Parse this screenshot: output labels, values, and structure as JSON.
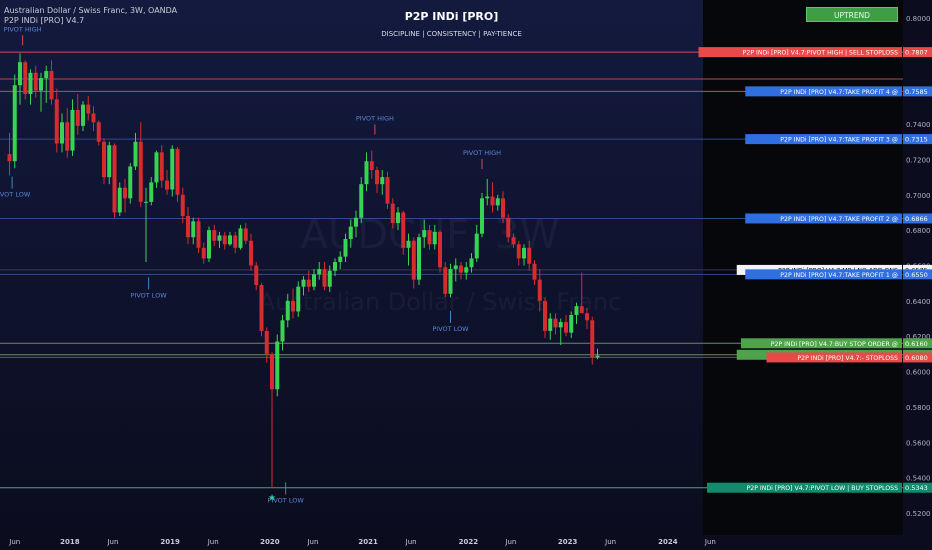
{
  "header": {
    "symbol_line": "Australian Dollar / Swiss Franc, 3W, OANDA",
    "indicator_line": "P2P INDi [PRO] V4.7",
    "title": "P2P INDi [PRO]",
    "subtitle": "DISCIPLINE  |  CONSISTENCY  |  PAY-TIENCE",
    "trend_badge": "UPTREND"
  },
  "watermark": {
    "ticker": "AUDCHF, 3W",
    "name": "Australian Dollar / Swiss Franc"
  },
  "colors": {
    "background": "#0b0c1e",
    "future_zone": "#06070b",
    "candle_up": "#39d353",
    "candle_down": "#d62b2f",
    "label_blue": "#2f6fe0",
    "label_red": "#e84a4a",
    "label_green": "#4fa34a",
    "label_teal": "#148a6c",
    "label_white": "#f3f3f3"
  },
  "y_axis": {
    "ticks": [
      "0.8000",
      "0.7800",
      "0.7600",
      "0.7400",
      "0.7200",
      "0.7000",
      "0.6800",
      "0.6600",
      "0.6400",
      "0.6200",
      "0.6000",
      "0.5800",
      "0.5600",
      "0.5400",
      "0.5200"
    ],
    "tick_values": [
      0.8,
      0.78,
      0.76,
      0.74,
      0.72,
      0.7,
      0.68,
      0.66,
      0.64,
      0.62,
      0.6,
      0.58,
      0.56,
      0.54,
      0.52
    ]
  },
  "x_axis": {
    "labels": [
      {
        "text": "Jun",
        "bar": 1
      },
      {
        "text": "2018",
        "bar": 11.5
      },
      {
        "text": "Jun",
        "bar": 19.7
      },
      {
        "text": "2019",
        "bar": 30.6
      },
      {
        "text": "Jun",
        "bar": 38.8
      },
      {
        "text": "2020",
        "bar": 49.6
      },
      {
        "text": "Jun",
        "bar": 57.8
      },
      {
        "text": "2021",
        "bar": 68.3
      },
      {
        "text": "Jun",
        "bar": 76.5
      },
      {
        "text": "2022",
        "bar": 87.4
      },
      {
        "text": "Jun",
        "bar": 95.5
      },
      {
        "text": "2023",
        "bar": 106.3
      },
      {
        "text": "Jun",
        "bar": 114.5
      },
      {
        "text": "2024",
        "bar": 125.4
      },
      {
        "text": "Jun",
        "bar": 133.5
      }
    ]
  },
  "levels": [
    {
      "text": "P2P INDi [PRO] V4.7:PIVOT HIGH | SELL STOPLOSS",
      "price": 0.7807,
      "price_text": "0.7807",
      "color": "#e84a4a",
      "text_color": "#ffffff",
      "line": "#d64c4c"
    },
    {
      "text": "",
      "price": 0.7655,
      "price_text": "",
      "color": "",
      "text_color": "",
      "line": "#b24c4c"
    },
    {
      "text": "P2P INDi [PRO] V4.7:TAKE PROFIT 4 @",
      "price": 0.7585,
      "price_text": "0.7585",
      "color": "#2f6fe0",
      "text_color": "#ffffff",
      "line": "#c44a5a"
    },
    {
      "text": "P2P INDi [PRO] V4.7:TAKE PROFIT 3 @",
      "price": 0.7315,
      "price_text": "0.7315",
      "color": "#2f6fe0",
      "text_color": "#ffffff",
      "line": "#2e4d8a"
    },
    {
      "text": "P2P INDi [PRO] V4.7:TAKE PROFIT 2 @",
      "price": 0.6866,
      "price_text": "0.6866",
      "color": "#2f6fe0",
      "text_color": "#ffffff",
      "line": "#2e4d8a"
    },
    {
      "text": "P2P INDi [PRO] V4.7:MP  |  NO ADD ONS",
      "price": 0.6575,
      "price_text": "0.6575",
      "color": "#f3f3f3",
      "text_color": "#111111",
      "line": "#333a55"
    },
    {
      "text": "P2P INDi [PRO] V4.7:TAKE PROFIT 1 @",
      "price": 0.655,
      "price_text": "0.6550",
      "color": "#2f6fe0",
      "text_color": "#ffffff",
      "line": "#2e4d8a"
    },
    {
      "text": "P2P INDi [PRO] V4.7:BUY STOP ORDER @",
      "price": 0.616,
      "price_text": "0.6160",
      "color": "#4fa34a",
      "text_color": "#ffffff",
      "line": "#6a8a6a"
    },
    {
      "text": "P2P INDi [PRO] V4.7:BUY LIMIT ORDER @",
      "price": 0.6095,
      "price_text": "0.6095",
      "color": "#4fa34a",
      "text_color": "#ffffff",
      "line": "#6a8a6a"
    },
    {
      "text": "P2P INDi [PRO] V4.7:- STOPLOSS",
      "price": 0.608,
      "price_text": "0.6080",
      "color": "#e84a4a",
      "text_color": "#ffffff",
      "line": "#8a4a4a"
    },
    {
      "text": "P2P INDi [PRO] V4.7:PIVOT LOW | BUY STOPLOSS",
      "price": 0.5343,
      "price_text": "0.5343",
      "color": "#148a6c",
      "text_color": "#ffffff",
      "line": "#21b48e"
    }
  ],
  "pivot_labels": [
    {
      "text": "PIVOT HIGH",
      "bar": 2.5,
      "price": 0.7925
    },
    {
      "text": "PIVOT LOW",
      "bar": 0.5,
      "price": 0.699
    },
    {
      "text": "PIVOT LOW",
      "bar": 26.5,
      "price": 0.642
    },
    {
      "text": "PIVOT HIGH",
      "bar": 69.6,
      "price": 0.742
    },
    {
      "text": "PIVOT HIGH",
      "bar": 90.0,
      "price": 0.7225
    },
    {
      "text": "PIVOT LOW",
      "bar": 84.0,
      "price": 0.623
    },
    {
      "text": "PIVOT LOW",
      "bar": 52.6,
      "price": 0.526
    }
  ],
  "chart_data": {
    "type": "candlestick",
    "title": "P2P INDi [PRO]",
    "ylim": [
      0.51,
      0.81
    ],
    "last_price": 0.608,
    "candles": [
      {
        "o": 0.723,
        "h": 0.735,
        "l": 0.711,
        "c": 0.719
      },
      {
        "o": 0.719,
        "h": 0.768,
        "l": 0.715,
        "c": 0.762
      },
      {
        "o": 0.762,
        "h": 0.78,
        "l": 0.751,
        "c": 0.775
      },
      {
        "o": 0.775,
        "h": 0.776,
        "l": 0.754,
        "c": 0.757
      },
      {
        "o": 0.757,
        "h": 0.771,
        "l": 0.751,
        "c": 0.769
      },
      {
        "o": 0.769,
        "h": 0.773,
        "l": 0.755,
        "c": 0.759
      },
      {
        "o": 0.759,
        "h": 0.769,
        "l": 0.747,
        "c": 0.766
      },
      {
        "o": 0.766,
        "h": 0.773,
        "l": 0.752,
        "c": 0.77
      },
      {
        "o": 0.77,
        "h": 0.776,
        "l": 0.751,
        "c": 0.754
      },
      {
        "o": 0.754,
        "h": 0.76,
        "l": 0.724,
        "c": 0.729
      },
      {
        "o": 0.729,
        "h": 0.746,
        "l": 0.724,
        "c": 0.741
      },
      {
        "o": 0.741,
        "h": 0.749,
        "l": 0.721,
        "c": 0.725
      },
      {
        "o": 0.725,
        "h": 0.754,
        "l": 0.722,
        "c": 0.748
      },
      {
        "o": 0.748,
        "h": 0.757,
        "l": 0.734,
        "c": 0.739
      },
      {
        "o": 0.739,
        "h": 0.753,
        "l": 0.736,
        "c": 0.751
      },
      {
        "o": 0.751,
        "h": 0.756,
        "l": 0.742,
        "c": 0.746
      },
      {
        "o": 0.746,
        "h": 0.75,
        "l": 0.736,
        "c": 0.741
      },
      {
        "o": 0.741,
        "h": 0.742,
        "l": 0.728,
        "c": 0.73
      },
      {
        "o": 0.73,
        "h": 0.732,
        "l": 0.706,
        "c": 0.71
      },
      {
        "o": 0.71,
        "h": 0.73,
        "l": 0.706,
        "c": 0.728
      },
      {
        "o": 0.728,
        "h": 0.729,
        "l": 0.687,
        "c": 0.69
      },
      {
        "o": 0.69,
        "h": 0.707,
        "l": 0.688,
        "c": 0.704
      },
      {
        "o": 0.704,
        "h": 0.709,
        "l": 0.69,
        "c": 0.698
      },
      {
        "o": 0.698,
        "h": 0.718,
        "l": 0.695,
        "c": 0.716
      },
      {
        "o": 0.716,
        "h": 0.735,
        "l": 0.714,
        "c": 0.73
      },
      {
        "o": 0.73,
        "h": 0.741,
        "l": 0.693,
        "c": 0.696
      },
      {
        "o": 0.696,
        "h": 0.704,
        "l": 0.662,
        "c": 0.696
      },
      {
        "o": 0.696,
        "h": 0.71,
        "l": 0.694,
        "c": 0.707
      },
      {
        "o": 0.707,
        "h": 0.725,
        "l": 0.704,
        "c": 0.724
      },
      {
        "o": 0.724,
        "h": 0.728,
        "l": 0.704,
        "c": 0.708
      },
      {
        "o": 0.708,
        "h": 0.714,
        "l": 0.7,
        "c": 0.703
      },
      {
        "o": 0.703,
        "h": 0.728,
        "l": 0.699,
        "c": 0.726
      },
      {
        "o": 0.726,
        "h": 0.727,
        "l": 0.696,
        "c": 0.7
      },
      {
        "o": 0.7,
        "h": 0.704,
        "l": 0.684,
        "c": 0.688
      },
      {
        "o": 0.688,
        "h": 0.693,
        "l": 0.672,
        "c": 0.676
      },
      {
        "o": 0.676,
        "h": 0.687,
        "l": 0.672,
        "c": 0.685
      },
      {
        "o": 0.685,
        "h": 0.687,
        "l": 0.667,
        "c": 0.67
      },
      {
        "o": 0.67,
        "h": 0.673,
        "l": 0.661,
        "c": 0.664
      },
      {
        "o": 0.664,
        "h": 0.682,
        "l": 0.662,
        "c": 0.68
      },
      {
        "o": 0.68,
        "h": 0.683,
        "l": 0.671,
        "c": 0.674
      },
      {
        "o": 0.674,
        "h": 0.679,
        "l": 0.67,
        "c": 0.677
      },
      {
        "o": 0.677,
        "h": 0.679,
        "l": 0.669,
        "c": 0.672
      },
      {
        "o": 0.672,
        "h": 0.679,
        "l": 0.671,
        "c": 0.677
      },
      {
        "o": 0.677,
        "h": 0.679,
        "l": 0.667,
        "c": 0.67
      },
      {
        "o": 0.67,
        "h": 0.683,
        "l": 0.669,
        "c": 0.681
      },
      {
        "o": 0.681,
        "h": 0.684,
        "l": 0.672,
        "c": 0.674
      },
      {
        "o": 0.674,
        "h": 0.678,
        "l": 0.657,
        "c": 0.66
      },
      {
        "o": 0.66,
        "h": 0.662,
        "l": 0.646,
        "c": 0.649
      },
      {
        "o": 0.649,
        "h": 0.65,
        "l": 0.62,
        "c": 0.623
      },
      {
        "o": 0.623,
        "h": 0.625,
        "l": 0.605,
        "c": 0.61
      },
      {
        "o": 0.61,
        "h": 0.611,
        "l": 0.534,
        "c": 0.59
      },
      {
        "o": 0.59,
        "h": 0.621,
        "l": 0.586,
        "c": 0.617
      },
      {
        "o": 0.617,
        "h": 0.632,
        "l": 0.612,
        "c": 0.629
      },
      {
        "o": 0.629,
        "h": 0.644,
        "l": 0.625,
        "c": 0.64
      },
      {
        "o": 0.64,
        "h": 0.647,
        "l": 0.63,
        "c": 0.634
      },
      {
        "o": 0.634,
        "h": 0.651,
        "l": 0.631,
        "c": 0.648
      },
      {
        "o": 0.648,
        "h": 0.654,
        "l": 0.643,
        "c": 0.652
      },
      {
        "o": 0.652,
        "h": 0.657,
        "l": 0.645,
        "c": 0.648
      },
      {
        "o": 0.648,
        "h": 0.658,
        "l": 0.646,
        "c": 0.655
      },
      {
        "o": 0.655,
        "h": 0.662,
        "l": 0.652,
        "c": 0.658
      },
      {
        "o": 0.658,
        "h": 0.662,
        "l": 0.646,
        "c": 0.648
      },
      {
        "o": 0.648,
        "h": 0.66,
        "l": 0.645,
        "c": 0.657
      },
      {
        "o": 0.657,
        "h": 0.664,
        "l": 0.654,
        "c": 0.662
      },
      {
        "o": 0.662,
        "h": 0.668,
        "l": 0.658,
        "c": 0.665
      },
      {
        "o": 0.665,
        "h": 0.678,
        "l": 0.662,
        "c": 0.675
      },
      {
        "o": 0.675,
        "h": 0.686,
        "l": 0.67,
        "c": 0.682
      },
      {
        "o": 0.682,
        "h": 0.691,
        "l": 0.676,
        "c": 0.687
      },
      {
        "o": 0.687,
        "h": 0.71,
        "l": 0.684,
        "c": 0.706
      },
      {
        "o": 0.706,
        "h": 0.724,
        "l": 0.702,
        "c": 0.719
      },
      {
        "o": 0.719,
        "h": 0.725,
        "l": 0.709,
        "c": 0.714
      },
      {
        "o": 0.714,
        "h": 0.716,
        "l": 0.701,
        "c": 0.706
      },
      {
        "o": 0.706,
        "h": 0.714,
        "l": 0.7,
        "c": 0.71
      },
      {
        "o": 0.71,
        "h": 0.713,
        "l": 0.692,
        "c": 0.695
      },
      {
        "o": 0.695,
        "h": 0.698,
        "l": 0.681,
        "c": 0.684
      },
      {
        "o": 0.684,
        "h": 0.693,
        "l": 0.68,
        "c": 0.69
      },
      {
        "o": 0.69,
        "h": 0.691,
        "l": 0.666,
        "c": 0.67
      },
      {
        "o": 0.67,
        "h": 0.678,
        "l": 0.66,
        "c": 0.674
      },
      {
        "o": 0.674,
        "h": 0.676,
        "l": 0.647,
        "c": 0.652
      },
      {
        "o": 0.652,
        "h": 0.678,
        "l": 0.649,
        "c": 0.676
      },
      {
        "o": 0.676,
        "h": 0.686,
        "l": 0.67,
        "c": 0.68
      },
      {
        "o": 0.68,
        "h": 0.683,
        "l": 0.669,
        "c": 0.672
      },
      {
        "o": 0.672,
        "h": 0.683,
        "l": 0.669,
        "c": 0.679
      },
      {
        "o": 0.679,
        "h": 0.68,
        "l": 0.656,
        "c": 0.659
      },
      {
        "o": 0.659,
        "h": 0.662,
        "l": 0.642,
        "c": 0.644
      },
      {
        "o": 0.644,
        "h": 0.661,
        "l": 0.642,
        "c": 0.658
      },
      {
        "o": 0.658,
        "h": 0.664,
        "l": 0.651,
        "c": 0.66
      },
      {
        "o": 0.66,
        "h": 0.662,
        "l": 0.652,
        "c": 0.656
      },
      {
        "o": 0.656,
        "h": 0.662,
        "l": 0.652,
        "c": 0.659
      },
      {
        "o": 0.659,
        "h": 0.667,
        "l": 0.656,
        "c": 0.664
      },
      {
        "o": 0.664,
        "h": 0.683,
        "l": 0.662,
        "c": 0.678
      },
      {
        "o": 0.678,
        "h": 0.701,
        "l": 0.676,
        "c": 0.698
      },
      {
        "o": 0.698,
        "h": 0.709,
        "l": 0.694,
        "c": 0.699
      },
      {
        "o": 0.699,
        "h": 0.707,
        "l": 0.69,
        "c": 0.694
      },
      {
        "o": 0.694,
        "h": 0.7,
        "l": 0.691,
        "c": 0.698
      },
      {
        "o": 0.698,
        "h": 0.702,
        "l": 0.684,
        "c": 0.687
      },
      {
        "o": 0.687,
        "h": 0.689,
        "l": 0.673,
        "c": 0.676
      },
      {
        "o": 0.676,
        "h": 0.678,
        "l": 0.67,
        "c": 0.672
      },
      {
        "o": 0.672,
        "h": 0.674,
        "l": 0.66,
        "c": 0.664
      },
      {
        "o": 0.664,
        "h": 0.672,
        "l": 0.66,
        "c": 0.67
      },
      {
        "o": 0.67,
        "h": 0.674,
        "l": 0.657,
        "c": 0.661
      },
      {
        "o": 0.661,
        "h": 0.663,
        "l": 0.649,
        "c": 0.652
      },
      {
        "o": 0.652,
        "h": 0.658,
        "l": 0.634,
        "c": 0.64
      },
      {
        "o": 0.64,
        "h": 0.642,
        "l": 0.619,
        "c": 0.623
      },
      {
        "o": 0.623,
        "h": 0.633,
        "l": 0.618,
        "c": 0.63
      },
      {
        "o": 0.63,
        "h": 0.633,
        "l": 0.621,
        "c": 0.625
      },
      {
        "o": 0.625,
        "h": 0.63,
        "l": 0.615,
        "c": 0.628
      },
      {
        "o": 0.628,
        "h": 0.632,
        "l": 0.62,
        "c": 0.622
      },
      {
        "o": 0.622,
        "h": 0.634,
        "l": 0.619,
        "c": 0.632
      },
      {
        "o": 0.632,
        "h": 0.639,
        "l": 0.627,
        "c": 0.637
      },
      {
        "o": 0.637,
        "h": 0.656,
        "l": 0.634,
        "c": 0.633
      },
      {
        "o": 0.633,
        "h": 0.636,
        "l": 0.624,
        "c": 0.629
      },
      {
        "o": 0.629,
        "h": 0.631,
        "l": 0.604,
        "c": 0.608
      },
      {
        "o": 0.608,
        "h": 0.613,
        "l": 0.607,
        "c": 0.609
      }
    ]
  }
}
